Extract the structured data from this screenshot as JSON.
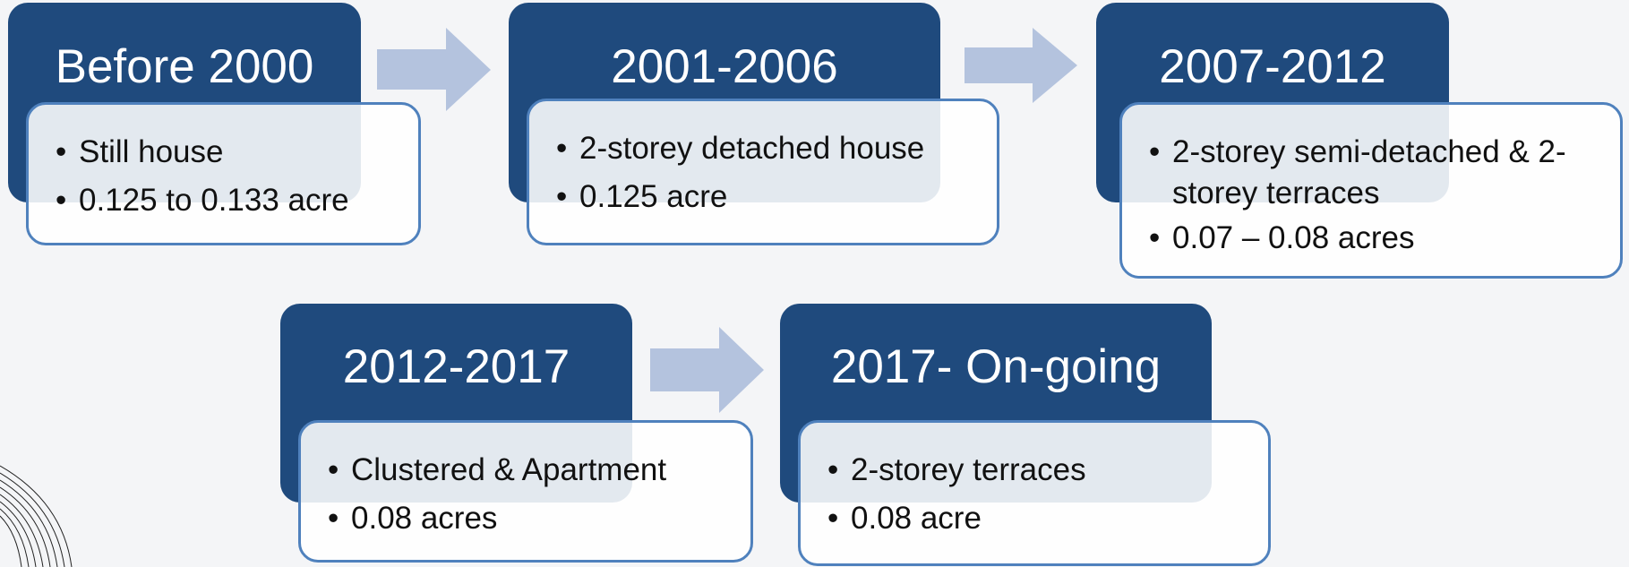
{
  "nodes": [
    {
      "title": "Before 2000",
      "bullets": [
        "Still house",
        "0.125 to 0.133 acre"
      ]
    },
    {
      "title": "2001-2006",
      "bullets": [
        "2-storey detached house",
        "0.125 acre"
      ]
    },
    {
      "title": "2007-2012",
      "bullets": [
        "2-storey semi-detached & 2-storey terraces",
        "0.07 – 0.08 acres"
      ]
    },
    {
      "title": "2012-2017",
      "bullets": [
        "Clustered & Apartment",
        "0.08 acres"
      ]
    },
    {
      "title": "2017- On-going",
      "bullets": [
        "2-storey terraces",
        "0.08 acre"
      ]
    }
  ]
}
